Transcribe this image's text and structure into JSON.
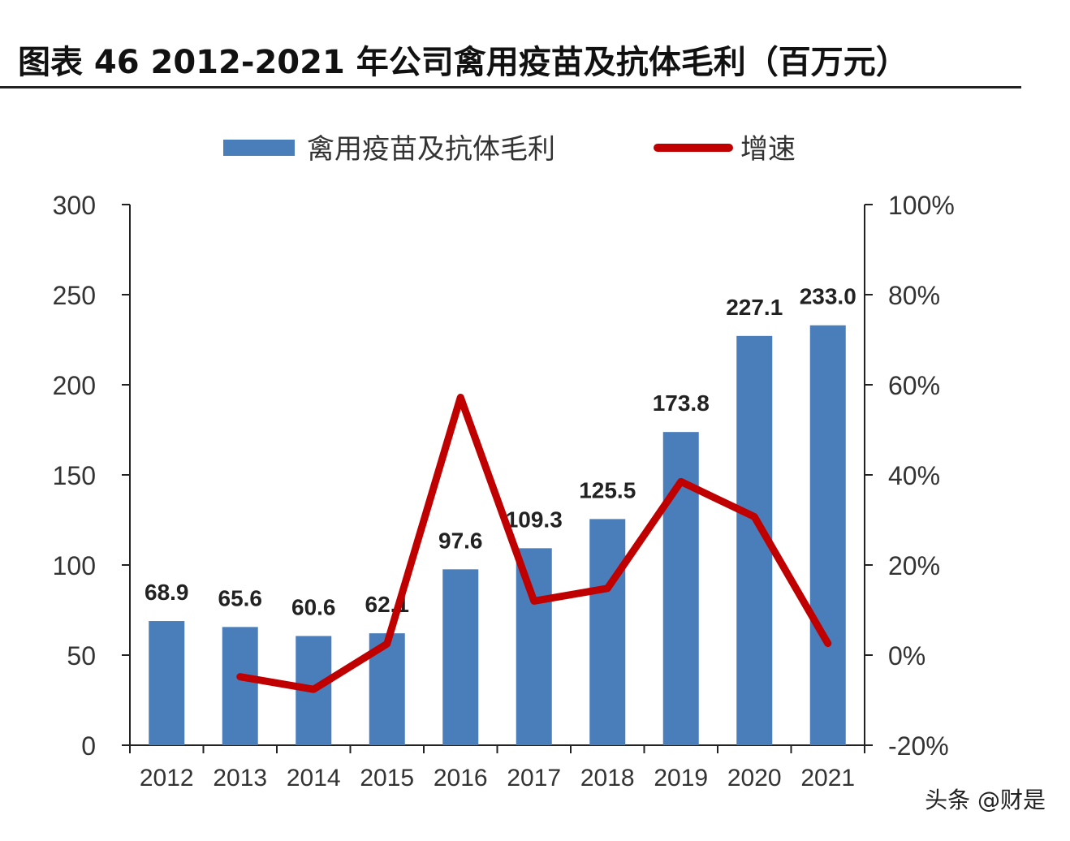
{
  "title": "图表 46 2012-2021 年公司禽用疫苗及抗体毛利（百万元）",
  "watermark": "头条 @财是",
  "chart_data": {
    "type": "bar",
    "categories": [
      "2012",
      "2013",
      "2014",
      "2015",
      "2016",
      "2017",
      "2018",
      "2019",
      "2020",
      "2021"
    ],
    "series": [
      {
        "name": "禽用疫苗及抗体毛利",
        "type": "bar",
        "axis": "left",
        "values": [
          68.9,
          65.6,
          60.6,
          62.1,
          97.6,
          109.3,
          125.5,
          173.8,
          227.1,
          233.0
        ],
        "labels": [
          "68.9",
          "65.6",
          "60.6",
          "62.1",
          "97.6",
          "109.3",
          "125.5",
          "173.8",
          "227.1",
          "233.0"
        ]
      },
      {
        "name": "增速",
        "type": "line",
        "axis": "right",
        "values": [
          null,
          -4.8,
          -7.6,
          2.5,
          57.2,
          12.0,
          14.8,
          38.5,
          30.7,
          2.6
        ]
      }
    ],
    "y_left": {
      "min": 0,
      "max": 300,
      "ticks": [
        "0",
        "50",
        "100",
        "150",
        "200",
        "250",
        "300"
      ]
    },
    "y_right": {
      "min": -20,
      "max": 100,
      "ticks": [
        "-20%",
        "0%",
        "20%",
        "40%",
        "60%",
        "80%",
        "100%"
      ]
    },
    "legend_position": "top-center",
    "colors": {
      "bar": "#4a7ebb",
      "line": "#c00000",
      "axis": "#222222",
      "text": "#333333"
    }
  }
}
